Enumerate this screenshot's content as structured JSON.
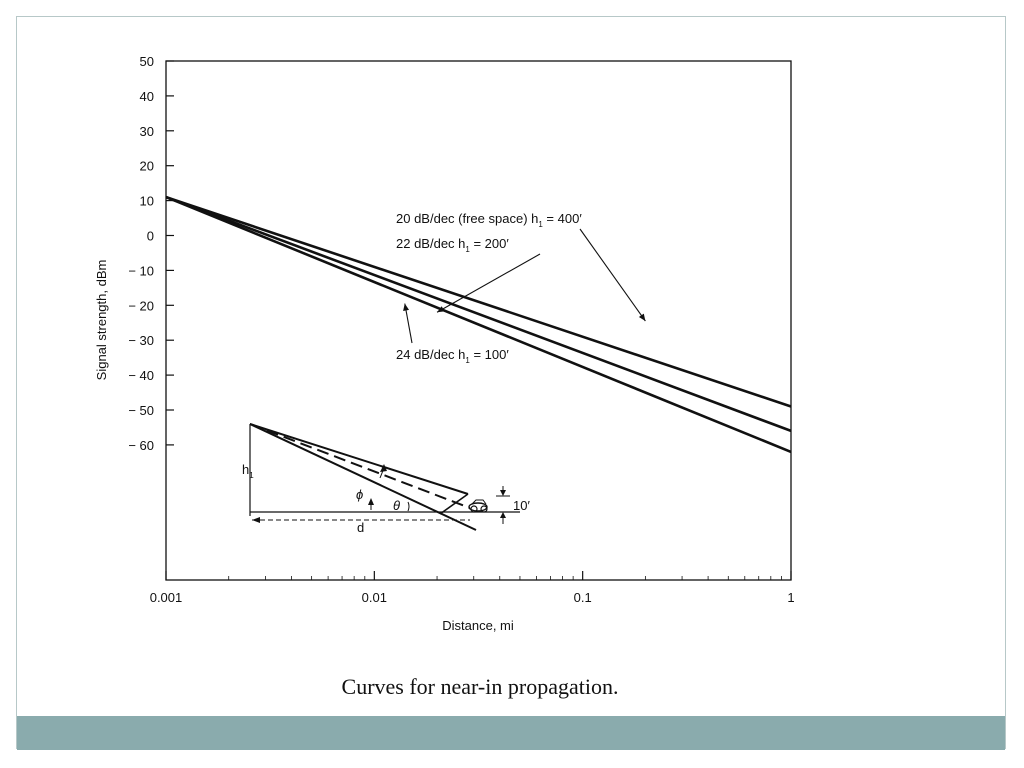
{
  "slide": {
    "caption": "Curves for near-in propagation.",
    "footer_color": "#8aabad",
    "frame_color": "#b7c8c8"
  },
  "chart_data": {
    "type": "line",
    "title": "",
    "xlabel": "Distance, mi",
    "ylabel": "Signal strength, dBm",
    "x_scale": "log",
    "xlim": [
      0.001,
      1
    ],
    "ylim": [
      -60,
      50
    ],
    "x_ticks": [
      0.001,
      0.01,
      0.1,
      1
    ],
    "x_tick_labels": [
      "0.001",
      "0.01",
      "0.1",
      "1"
    ],
    "y_ticks": [
      50,
      40,
      30,
      20,
      10,
      0,
      -10,
      -20,
      -30,
      -40,
      -50,
      -60
    ],
    "y_tick_labels": [
      "50",
      "40",
      "30",
      "20",
      "10",
      "0",
      "− 10",
      "− 20",
      "− 30",
      "− 40",
      "− 50",
      "− 60"
    ],
    "grid": false,
    "series": [
      {
        "x": [
          0.001,
          1
        ],
        "y": [
          11,
          -49
        ]
      },
      {
        "x": [
          0.001,
          1
        ],
        "y": [
          11,
          -56
        ]
      },
      {
        "x": [
          0.001,
          1
        ],
        "y": [
          11,
          -62
        ]
      }
    ],
    "annotations": [
      {
        "main": "20 dB/dec (free space) h",
        "sub": "1",
        "tail": " = 400′",
        "points_to": {
          "x": 0.2,
          "y": -24.5
        }
      },
      {
        "main": "22 dB/dec h",
        "sub": "1",
        "tail": " = 200′",
        "points_to": {
          "x": 0.02,
          "y": -22
        }
      },
      {
        "main": "24 dB/dec h",
        "sub": "1",
        "tail": " = 100′",
        "points_to": {
          "x": 0.014,
          "y": -19.5
        }
      }
    ],
    "inset_labels": {
      "h": "h",
      "h_sub": "1",
      "phi": "ϕ",
      "theta": "θ",
      "d": "d",
      "ten_ft": "10′"
    }
  }
}
